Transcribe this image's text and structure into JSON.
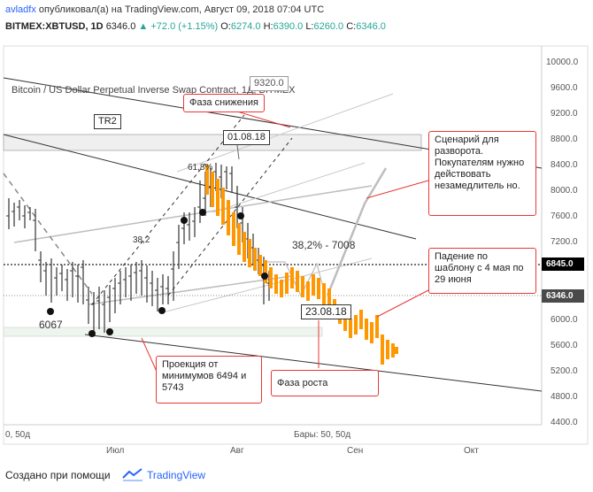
{
  "header": {
    "author": "avladfx",
    "published": "опубликовал(а) на TradingView.com, Август 09, 2018 07:04 UTC",
    "symbol": "BITMEX:XBTUSD, 1D",
    "last": "6346.0",
    "change": "▲ +72.0 (+1.15%)",
    "o_label": "O:",
    "o": "6274.0",
    "h_label": "H:",
    "h": "6390.0",
    "l_label": "L:",
    "l": "6260.0",
    "c_label": "C:",
    "c": "6346.0"
  },
  "chart": {
    "subtitle": "Bitcoin / US Dollar Perpetual Inverse Swap Contract, 1Д, BITMEX",
    "price_axis": [
      "10000.0",
      "9600.0",
      "9200.0",
      "8800.0",
      "8400.0",
      "8000.0",
      "7600.0",
      "7200.0",
      "6845.0",
      "6346.0",
      "6000.0",
      "5600.0",
      "5200.0",
      "4800.0",
      "4400.0"
    ],
    "time_axis": [
      "Июл",
      "Авг",
      "Сен",
      "Окт"
    ],
    "bars_info": "Бары: 50, 50д",
    "left_bars_info": "0, 50д",
    "flag_6845": "6845.0",
    "flag_6346": "6346.0",
    "colors": {
      "up_bar": "#333333",
      "projection": "#ff9800",
      "note_border": "#e53935",
      "flag_dark": "#000000",
      "flag_current": "#4a4a4a"
    }
  },
  "annotations": {
    "phase_down": "Фаза снижения",
    "date_top": "01.08.18",
    "price_9320": "9320.0",
    "scenario": "Сценарий для разворота. Покупателям нужно действовать незамедлитель но.",
    "tr2": "TR2",
    "fib_618": "61,8%",
    "fib_382_small": "38,2",
    "fib_382": "38,2% - 7008",
    "level_6067": "6067",
    "date_mid": "23.08.18",
    "pattern": "Падение по шаблону с 4 мая по 29 июня",
    "projection": "Проекция от минимумов 6494 и 5743",
    "phase_up": "Фаза роста"
  },
  "footer": {
    "made_with": "Создано при помощи",
    "brand": "TradingView"
  }
}
